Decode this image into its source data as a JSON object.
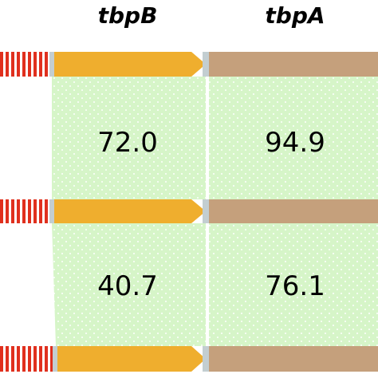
{
  "genes": [
    "tbpB",
    "tbpA"
  ],
  "identity_rows": [
    {
      "values": [
        "72.0",
        "94.9"
      ]
    },
    {
      "values": [
        "40.7",
        "76.1"
      ]
    }
  ],
  "colors": {
    "tbpB_arrow": "#efae2e",
    "tbpA_arrow": "#c5a07c",
    "identity_fill": "#d6f5c8",
    "upstream_stripes": "#e0301e",
    "spacer": "#c3ced1"
  }
}
